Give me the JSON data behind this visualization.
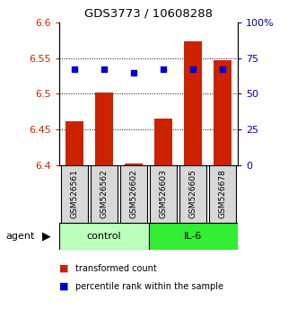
{
  "title": "GDS3773 / 10608288",
  "samples": [
    "GSM526561",
    "GSM526562",
    "GSM526602",
    "GSM526603",
    "GSM526605",
    "GSM526678"
  ],
  "bar_values": [
    6.462,
    6.502,
    6.402,
    6.466,
    6.573,
    6.547
  ],
  "percentile_values": [
    6.535,
    6.535,
    6.53,
    6.535,
    6.535,
    6.535
  ],
  "bar_color": "#cc2200",
  "percentile_color": "#0000cc",
  "ylim": [
    6.4,
    6.6
  ],
  "yticks": [
    6.4,
    6.45,
    6.5,
    6.55,
    6.6
  ],
  "ytick_labels": [
    "6.4",
    "6.45",
    "6.5",
    "6.55",
    "6.6"
  ],
  "right_yticks": [
    0,
    25,
    50,
    75,
    100
  ],
  "right_ytick_labels": [
    "0",
    "25",
    "50",
    "75",
    "100%"
  ],
  "grid_lines": [
    6.45,
    6.5,
    6.55
  ],
  "group_labels": [
    "control",
    "IL-6"
  ],
  "group_ranges": [
    [
      0,
      2
    ],
    [
      3,
      5
    ]
  ],
  "group_colors": [
    "#bbffbb",
    "#33ee33"
  ],
  "agent_label": "agent",
  "legend_items": [
    "transformed count",
    "percentile rank within the sample"
  ],
  "bar_width": 0.6
}
